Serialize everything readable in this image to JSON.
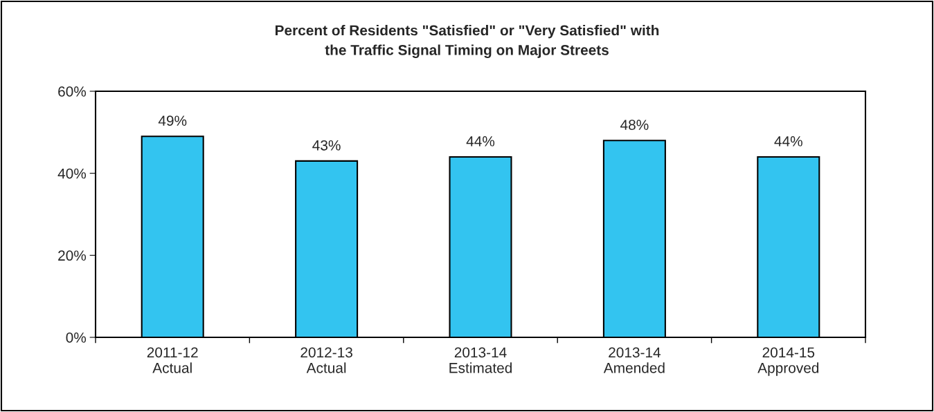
{
  "chart_data": {
    "type": "bar",
    "title": "Percent of Residents \"Satisfied\" or \"Very Satisfied\" with\nthe Traffic Signal Timing on Major Streets",
    "categories": [
      "2011-12\nActual",
      "2012-13\nActual",
      "2013-14\nEstimated",
      "2013-14\nAmended",
      "2014-15\nApproved"
    ],
    "values": [
      49,
      43,
      44,
      48,
      44
    ],
    "value_labels": [
      "49%",
      "43%",
      "44%",
      "48%",
      "44%"
    ],
    "color": "#33c4f0",
    "ylim": [
      0,
      60
    ],
    "yticks": [
      {
        "value": 0,
        "label": "0%"
      },
      {
        "value": 20,
        "label": "20%"
      },
      {
        "value": 40,
        "label": "40%"
      },
      {
        "value": 60,
        "label": "60%"
      }
    ],
    "grid": false,
    "legend": false
  }
}
